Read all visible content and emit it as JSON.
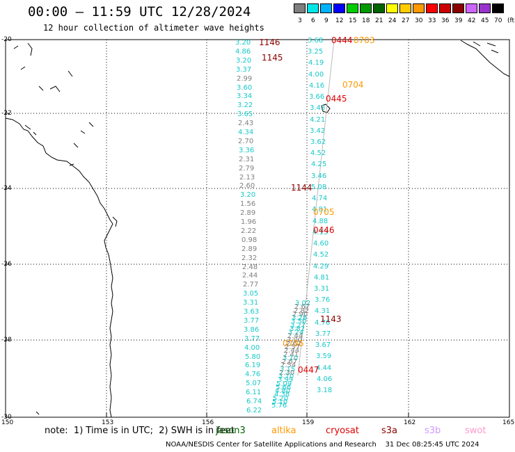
{
  "header": {
    "title": "00:00 – 11:59 UTC 12/28/2024",
    "subtitle": "12 hour collection of altimeter wave heights"
  },
  "scale": {
    "unit": "(ft)",
    "steps": [
      {
        "label": "3",
        "color": "#7f7f7f"
      },
      {
        "label": "6",
        "color": "#00e5e5"
      },
      {
        "label": "9",
        "color": "#00b2ff"
      },
      {
        "label": "12",
        "color": "#0000ff"
      },
      {
        "label": "15",
        "color": "#00cc00"
      },
      {
        "label": "18",
        "color": "#009900"
      },
      {
        "label": "21",
        "color": "#006400"
      },
      {
        "label": "24",
        "color": "#ffff00"
      },
      {
        "label": "27",
        "color": "#ffcc00"
      },
      {
        "label": "30",
        "color": "#ff9900"
      },
      {
        "label": "33",
        "color": "#ff0000"
      },
      {
        "label": "36",
        "color": "#cc0000"
      },
      {
        "label": "39",
        "color": "#8b0000"
      },
      {
        "label": "42",
        "color": "#cc66ff"
      },
      {
        "label": "45",
        "color": "#9933cc"
      },
      {
        "label": "70",
        "color": "#000000"
      }
    ]
  },
  "axes": {
    "lat_labels": [
      "-20",
      "-22",
      "-24",
      "-26",
      "-28",
      "-30"
    ],
    "lon_labels": [
      "150",
      "153",
      "156",
      "159",
      "162",
      "165"
    ]
  },
  "tracks": [
    {
      "label": "1146",
      "color": "#8b0000"
    },
    {
      "label": "1145",
      "color": "#8b0000"
    },
    {
      "label": "0444",
      "color": "#dd0000"
    },
    {
      "label": "0703",
      "color": "#ff9900"
    },
    {
      "label": "0704",
      "color": "#ff9900"
    },
    {
      "label": "0445",
      "color": "#dd0000"
    },
    {
      "label": "1144",
      "color": "#8b0000"
    },
    {
      "label": "0705",
      "color": "#ff9900"
    },
    {
      "label": "0446",
      "color": "#dd0000"
    },
    {
      "label": "1143",
      "color": "#8b0000"
    },
    {
      "label": "0706",
      "color": "#ff9900"
    },
    {
      "label": "0447",
      "color": "#dd0000"
    }
  ],
  "values_left": [
    [
      "3.20",
      "#18c8c8"
    ],
    [
      "4.86",
      "#18c8c8"
    ],
    [
      "3.20",
      "#18c8c8"
    ],
    [
      "3.37",
      "#18c8c8"
    ],
    [
      "2.99",
      "#7f7f7f"
    ],
    [
      "3.60",
      "#18c8c8"
    ],
    [
      "3.34",
      "#18c8c8"
    ],
    [
      "3.22",
      "#18c8c8"
    ],
    [
      "3.65",
      "#18c8c8"
    ],
    [
      "2.43",
      "#7f7f7f"
    ],
    [
      "4.34",
      "#18c8c8"
    ],
    [
      "2.70",
      "#7f7f7f"
    ],
    [
      "3.36",
      "#18c8c8"
    ],
    [
      "2.31",
      "#7f7f7f"
    ],
    [
      "2.79",
      "#7f7f7f"
    ],
    [
      "2.13",
      "#7f7f7f"
    ],
    [
      "2.60",
      "#7f7f7f"
    ],
    [
      "3.20",
      "#18c8c8"
    ],
    [
      "1.56",
      "#7f7f7f"
    ],
    [
      "2.89",
      "#7f7f7f"
    ],
    [
      "1.96",
      "#7f7f7f"
    ],
    [
      "2.22",
      "#7f7f7f"
    ],
    [
      "0.98",
      "#7f7f7f"
    ],
    [
      "2.89",
      "#7f7f7f"
    ],
    [
      "2.32",
      "#7f7f7f"
    ],
    [
      "2.48",
      "#7f7f7f"
    ],
    [
      "2.44",
      "#7f7f7f"
    ],
    [
      "2.77",
      "#7f7f7f"
    ],
    [
      "3.05",
      "#18c8c8"
    ],
    [
      "3.31",
      "#18c8c8"
    ],
    [
      "3.63",
      "#18c8c8"
    ],
    [
      "3.77",
      "#18c8c8"
    ],
    [
      "3.86",
      "#18c8c8"
    ],
    [
      "3.77",
      "#18c8c8"
    ],
    [
      "4.00",
      "#18c8c8"
    ],
    [
      "5.80",
      "#18c8c8"
    ],
    [
      "6.19",
      "#18c8c8"
    ],
    [
      "4.76",
      "#18c8c8"
    ],
    [
      "5.07",
      "#18c8c8"
    ],
    [
      "6.11",
      "#18c8c8"
    ],
    [
      "6.74",
      "#18c8c8"
    ],
    [
      "6.22",
      "#18c8c8"
    ]
  ],
  "values_mid": [
    [
      "3.02",
      "#18c8c8"
    ],
    [
      "2.67",
      "#7f7f7f"
    ],
    [
      "2.82",
      "#7f7f7f"
    ],
    [
      "2.90",
      "#7f7f7f"
    ],
    [
      "3.28",
      "#18c8c8"
    ],
    [
      "3.50",
      "#18c8c8"
    ],
    [
      "3.27",
      "#18c8c8"
    ],
    [
      "3.82",
      "#18c8c8"
    ],
    [
      "3.24",
      "#18c8c8"
    ],
    [
      "2.44",
      "#7f7f7f"
    ],
    [
      "3.00",
      "#7f7f7f"
    ],
    [
      "2.62",
      "#7f7f7f"
    ],
    [
      "2.57",
      "#7f7f7f"
    ],
    [
      "2.44",
      "#7f7f7f"
    ],
    [
      "2.41",
      "#7f7f7f"
    ],
    [
      "3.10",
      "#18c8c8"
    ],
    [
      "2.67",
      "#7f7f7f"
    ],
    [
      "2.54",
      "#7f7f7f"
    ],
    [
      "3.15",
      "#18c8c8"
    ],
    [
      "2.30",
      "#7f7f7f"
    ],
    [
      "3.70",
      "#18c8c8"
    ],
    [
      "3.99",
      "#18c8c8"
    ],
    [
      "5.09",
      "#18c8c8"
    ],
    [
      "5.66",
      "#18c8c8"
    ],
    [
      "4.80",
      "#18c8c8"
    ],
    [
      "4.38",
      "#18c8c8"
    ],
    [
      "5.20",
      "#18c8c8"
    ],
    [
      "5.10",
      "#18c8c8"
    ],
    [
      "5.76",
      "#18c8c8"
    ]
  ],
  "values_right": [
    [
      "3.68",
      "#18c8c8"
    ],
    [
      "3.25",
      "#18c8c8"
    ],
    [
      "4.19",
      "#18c8c8"
    ],
    [
      "4.00",
      "#18c8c8"
    ],
    [
      "4.16",
      "#18c8c8"
    ],
    [
      "3.66",
      "#18c8c8"
    ],
    [
      "3.43",
      "#18c8c8"
    ],
    [
      "4.21",
      "#18c8c8"
    ],
    [
      "3.42",
      "#18c8c8"
    ],
    [
      "3.62",
      "#18c8c8"
    ],
    [
      "4.52",
      "#18c8c8"
    ],
    [
      "4.25",
      "#18c8c8"
    ],
    [
      "3.46",
      "#18c8c8"
    ],
    [
      "5.08",
      "#18c8c8"
    ],
    [
      "4.74",
      "#18c8c8"
    ],
    [
      "4.81",
      "#18c8c8"
    ],
    [
      "4.88",
      "#18c8c8"
    ],
    [
      "4.15",
      "#18c8c8"
    ],
    [
      "4.60",
      "#18c8c8"
    ],
    [
      "4.52",
      "#18c8c8"
    ],
    [
      "4.29",
      "#18c8c8"
    ],
    [
      "4.81",
      "#18c8c8"
    ],
    [
      "3.31",
      "#18c8c8"
    ],
    [
      "3.76",
      "#18c8c8"
    ],
    [
      "4.31",
      "#18c8c8"
    ],
    [
      "4.76",
      "#18c8c8"
    ],
    [
      "3.77",
      "#18c8c8"
    ],
    [
      "3.67",
      "#18c8c8"
    ],
    [
      "3.59",
      "#18c8c8"
    ],
    [
      "4.44",
      "#18c8c8"
    ],
    [
      "4.06",
      "#18c8c8"
    ],
    [
      "3.18",
      "#18c8c8"
    ]
  ],
  "footer": {
    "note": "note:  1) Time is in UTC;  2) SWH is in feet",
    "satellites": [
      {
        "name": "jason3",
        "color": "#006400"
      },
      {
        "name": "altika",
        "color": "#ff9900"
      },
      {
        "name": "cryosat",
        "color": "#dd0000"
      },
      {
        "name": "s3a",
        "color": "#8b0000"
      },
      {
        "name": "s3b",
        "color": "#cc99ff"
      },
      {
        "name": "swot",
        "color": "#ff99cc"
      }
    ],
    "credit": "NOAA/NESDIS Center for Satellite Applications and Research    31 Dec 08:25:45 UTC 2024"
  }
}
